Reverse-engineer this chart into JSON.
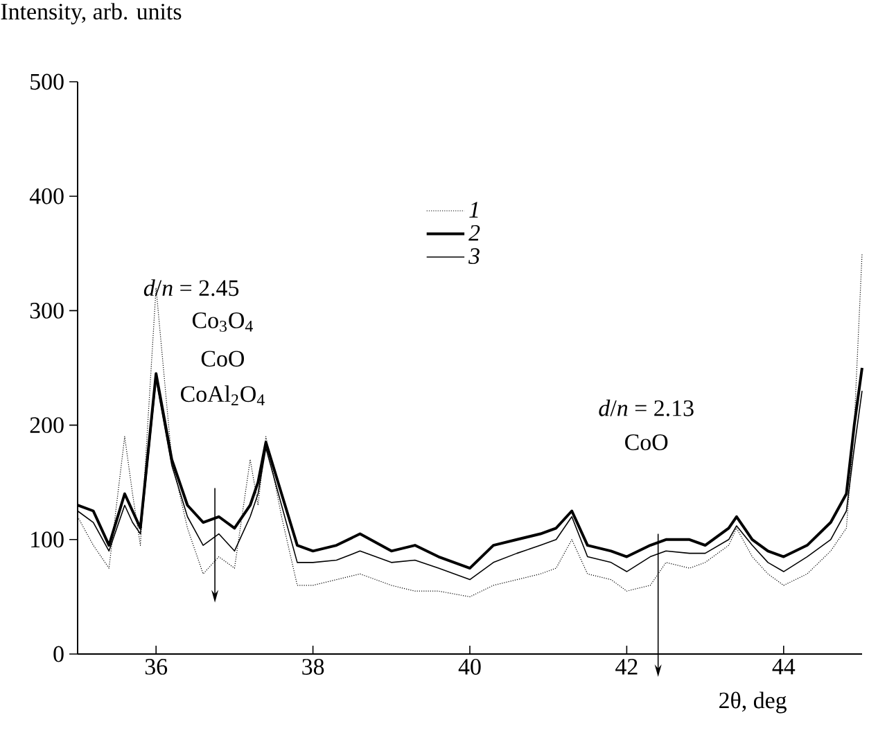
{
  "chart_data": {
    "type": "line",
    "xlabel": "2θ, deg",
    "ylabel": "Intensity, arb. units",
    "xlim": [
      35,
      45
    ],
    "xticks": [
      36,
      38,
      40,
      42,
      44
    ],
    "ylim": [
      0,
      500
    ],
    "yticks": [
      0,
      100,
      200,
      300,
      400,
      500
    ],
    "legend": "top",
    "grid": false,
    "marker": "none",
    "annotations": [
      "*d*/*n* = 2.45",
      "Co$_{3}$O$_{4}$",
      "CoO",
      "CoAl$_{2}$O$_{4}$",
      "*d*/*n* = 2.13",
      "CoO"
    ],
    "x": [
      35.0,
      35.2,
      35.4,
      35.6,
      35.7,
      35.8,
      36.0,
      36.2,
      36.4,
      36.6,
      36.8,
      37.0,
      37.2,
      37.3,
      37.4,
      37.6,
      37.8,
      38.0,
      38.3,
      38.6,
      39.0,
      39.3,
      39.6,
      40.0,
      40.3,
      40.6,
      40.9,
      41.1,
      41.3,
      41.5,
      41.8,
      42.0,
      42.3,
      42.5,
      42.8,
      43.0,
      43.3,
      43.4,
      43.6,
      43.8,
      44.0,
      44.3,
      44.6,
      44.8,
      44.9,
      45.0
    ],
    "series": [
      {
        "name": "1",
        "color": "#000000",
        "line_style": "dotted",
        "values": [
          120,
          95,
          75,
          190,
          140,
          95,
          320,
          170,
          110,
          70,
          85,
          75,
          170,
          130,
          190,
          120,
          60,
          60,
          65,
          70,
          60,
          55,
          55,
          50,
          60,
          65,
          70,
          75,
          100,
          70,
          65,
          55,
          60,
          80,
          75,
          80,
          95,
          110,
          85,
          70,
          60,
          70,
          90,
          110,
          200,
          350
        ]
      },
      {
        "name": "2",
        "color": "#000000",
        "line_style": "solid",
        "values": [
          130,
          125,
          95,
          140,
          125,
          110,
          245,
          170,
          130,
          115,
          120,
          110,
          130,
          150,
          185,
          140,
          95,
          90,
          95,
          105,
          90,
          95,
          85,
          75,
          95,
          100,
          105,
          110,
          125,
          95,
          90,
          85,
          95,
          100,
          100,
          95,
          110,
          120,
          100,
          90,
          85,
          95,
          115,
          140,
          200,
          250
        ]
      },
      {
        "name": "3",
        "color": "#000000",
        "line_style": "solid",
        "values": [
          125,
          115,
          90,
          130,
          115,
          105,
          240,
          165,
          120,
          95,
          105,
          90,
          120,
          140,
          180,
          130,
          80,
          80,
          82,
          90,
          80,
          82,
          75,
          65,
          80,
          88,
          95,
          100,
          120,
          85,
          80,
          72,
          85,
          90,
          88,
          88,
          100,
          112,
          95,
          80,
          72,
          85,
          100,
          125,
          180,
          230
        ]
      }
    ]
  }
}
